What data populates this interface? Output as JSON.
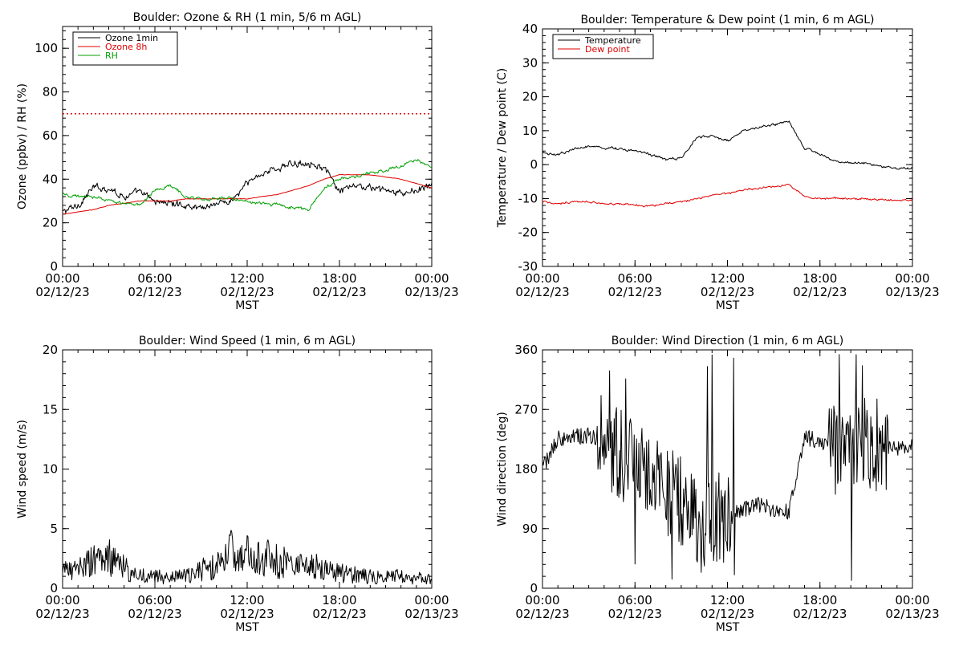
{
  "chart_data": [
    {
      "type": "line",
      "title": "Boulder: Ozone & RH (1 min, 5/6 m AGL)",
      "xlabel": "MST",
      "ylabel": "Ozone (ppbv) / RH (%)",
      "xlim": [
        "02/12/23 00:00",
        "02/13/23 00:00"
      ],
      "ylim": [
        0,
        110
      ],
      "yticks": [
        0,
        20,
        40,
        60,
        80,
        100
      ],
      "xticks": [
        {
          "time": "00:00",
          "date": "02/12/23"
        },
        {
          "time": "06:00",
          "date": "02/12/23"
        },
        {
          "time": "12:00",
          "date": "02/12/23"
        },
        {
          "time": "18:00",
          "date": "02/12/23"
        },
        {
          "time": "00:00",
          "date": "02/13/23"
        }
      ],
      "legend": "top-left",
      "reference_line": {
        "y": 70,
        "color": "#e00000",
        "style": "dotted"
      },
      "x": [
        "00:00",
        "01:00",
        "02:00",
        "03:00",
        "04:00",
        "05:00",
        "06:00",
        "07:00",
        "08:00",
        "09:00",
        "10:00",
        "11:00",
        "12:00",
        "13:00",
        "14:00",
        "15:00",
        "16:00",
        "17:00",
        "18:00",
        "19:00",
        "20:00",
        "21:00",
        "22:00",
        "23:00",
        "24:00"
      ],
      "series": [
        {
          "name": "Ozone 1min",
          "color": "#000000",
          "values": [
            25,
            28,
            36,
            36,
            32,
            34,
            30,
            29,
            28,
            27,
            29,
            30,
            38,
            43,
            45,
            47,
            48,
            45,
            34,
            37,
            36,
            35,
            33,
            35,
            37
          ]
        },
        {
          "name": "Ozone 8h",
          "color": "#e00000",
          "values": [
            24,
            25,
            26,
            28,
            29,
            30,
            30,
            30,
            31,
            31,
            31,
            31,
            31,
            32,
            33,
            35,
            37,
            40,
            42,
            42,
            42,
            41,
            40,
            38,
            36
          ]
        },
        {
          "name": "RH",
          "color": "#00a000",
          "values": [
            33,
            32,
            32,
            30,
            29,
            28,
            35,
            37,
            32,
            31,
            31,
            31,
            30,
            29,
            28,
            27,
            26,
            36,
            40,
            41,
            43,
            44,
            46,
            49,
            45
          ]
        }
      ]
    },
    {
      "type": "line",
      "title": "Boulder: Temperature & Dew point (1 min, 6 m AGL)",
      "xlabel": "MST",
      "ylabel": "Temperature / Dew point (C)",
      "xlim": [
        "02/12/23 00:00",
        "02/13/23 00:00"
      ],
      "ylim": [
        -30,
        40
      ],
      "yticks": [
        -30,
        -20,
        -10,
        0,
        10,
        20,
        30,
        40
      ],
      "xticks": [
        {
          "time": "00:00",
          "date": "02/12/23"
        },
        {
          "time": "06:00",
          "date": "02/12/23"
        },
        {
          "time": "12:00",
          "date": "02/12/23"
        },
        {
          "time": "18:00",
          "date": "02/12/23"
        },
        {
          "time": "00:00",
          "date": "02/13/23"
        }
      ],
      "legend": "top-left",
      "x": [
        "00:00",
        "01:00",
        "02:00",
        "03:00",
        "04:00",
        "05:00",
        "06:00",
        "07:00",
        "08:00",
        "09:00",
        "10:00",
        "11:00",
        "12:00",
        "13:00",
        "14:00",
        "15:00",
        "16:00",
        "17:00",
        "18:00",
        "19:00",
        "20:00",
        "21:00",
        "22:00",
        "23:00",
        "24:00"
      ],
      "series": [
        {
          "name": "Temperature",
          "color": "#000000",
          "values": [
            3.5,
            3,
            4.5,
            5.5,
            5,
            4.5,
            4,
            3,
            1.5,
            2,
            8,
            8.5,
            7,
            10,
            11,
            12,
            12.5,
            5,
            3,
            1,
            0.5,
            0.5,
            -0.5,
            -1,
            -1
          ]
        },
        {
          "name": "Dew point",
          "color": "#e00000",
          "values": [
            -11,
            -11.5,
            -11,
            -11,
            -11.5,
            -11.5,
            -12,
            -12,
            -11.5,
            -11,
            -10,
            -9,
            -8.5,
            -7.5,
            -7,
            -6.5,
            -6,
            -9.5,
            -10,
            -10,
            -10,
            -10,
            -10.5,
            -10.5,
            -10.5
          ]
        }
      ]
    },
    {
      "type": "line",
      "title": "Boulder: Wind Speed (1 min, 6 m AGL)",
      "xlabel": "MST",
      "ylabel": "Wind speed (m/s)",
      "xlim": [
        "02/12/23 00:00",
        "02/13/23 00:00"
      ],
      "ylim": [
        0,
        20
      ],
      "yticks": [
        0,
        5,
        10,
        15,
        20
      ],
      "xticks": [
        {
          "time": "00:00",
          "date": "02/12/23"
        },
        {
          "time": "06:00",
          "date": "02/12/23"
        },
        {
          "time": "12:00",
          "date": "02/12/23"
        },
        {
          "time": "18:00",
          "date": "02/12/23"
        },
        {
          "time": "00:00",
          "date": "02/13/23"
        }
      ],
      "x": [
        "00:00",
        "01:00",
        "02:00",
        "03:00",
        "04:00",
        "05:00",
        "06:00",
        "07:00",
        "08:00",
        "09:00",
        "10:00",
        "11:00",
        "12:00",
        "13:00",
        "14:00",
        "15:00",
        "16:00",
        "17:00",
        "18:00",
        "19:00",
        "20:00",
        "21:00",
        "22:00",
        "23:00",
        "24:00"
      ],
      "series": [
        {
          "name": "",
          "color": "#000000",
          "values": [
            1.2,
            1.5,
            2.2,
            2.5,
            1.5,
            1.0,
            0.8,
            0.8,
            1.0,
            1.5,
            1.8,
            2.8,
            3.0,
            2.5,
            2.2,
            2.0,
            1.8,
            1.5,
            1.2,
            1.0,
            1.0,
            0.9,
            0.9,
            0.8,
            0.8
          ]
        }
      ]
    },
    {
      "type": "line",
      "title": "Boulder: Wind Direction (1 min, 6 m AGL)",
      "xlabel": "MST",
      "ylabel": "Wind direction (deg)",
      "xlim": [
        "02/12/23 00:00",
        "02/13/23 00:00"
      ],
      "ylim": [
        0,
        360
      ],
      "yticks": [
        0,
        90,
        180,
        270,
        360
      ],
      "xticks": [
        {
          "time": "00:00",
          "date": "02/12/23"
        },
        {
          "time": "06:00",
          "date": "02/12/23"
        },
        {
          "time": "12:00",
          "date": "02/12/23"
        },
        {
          "time": "18:00",
          "date": "02/12/23"
        },
        {
          "time": "00:00",
          "date": "02/13/23"
        }
      ],
      "x": [
        "00:00",
        "01:00",
        "02:00",
        "03:00",
        "04:00",
        "05:00",
        "06:00",
        "07:00",
        "08:00",
        "09:00",
        "10:00",
        "11:00",
        "12:00",
        "13:00",
        "14:00",
        "15:00",
        "16:00",
        "17:00",
        "18:00",
        "19:00",
        "20:00",
        "21:00",
        "22:00",
        "23:00",
        "24:00"
      ],
      "series": [
        {
          "name": "",
          "color": "#000000",
          "values": [
            180,
            225,
            230,
            230,
            220,
            200,
            190,
            170,
            150,
            130,
            110,
            100,
            110,
            120,
            125,
            120,
            115,
            230,
            220,
            210,
            215,
            220,
            215,
            210,
            220
          ]
        }
      ]
    }
  ]
}
